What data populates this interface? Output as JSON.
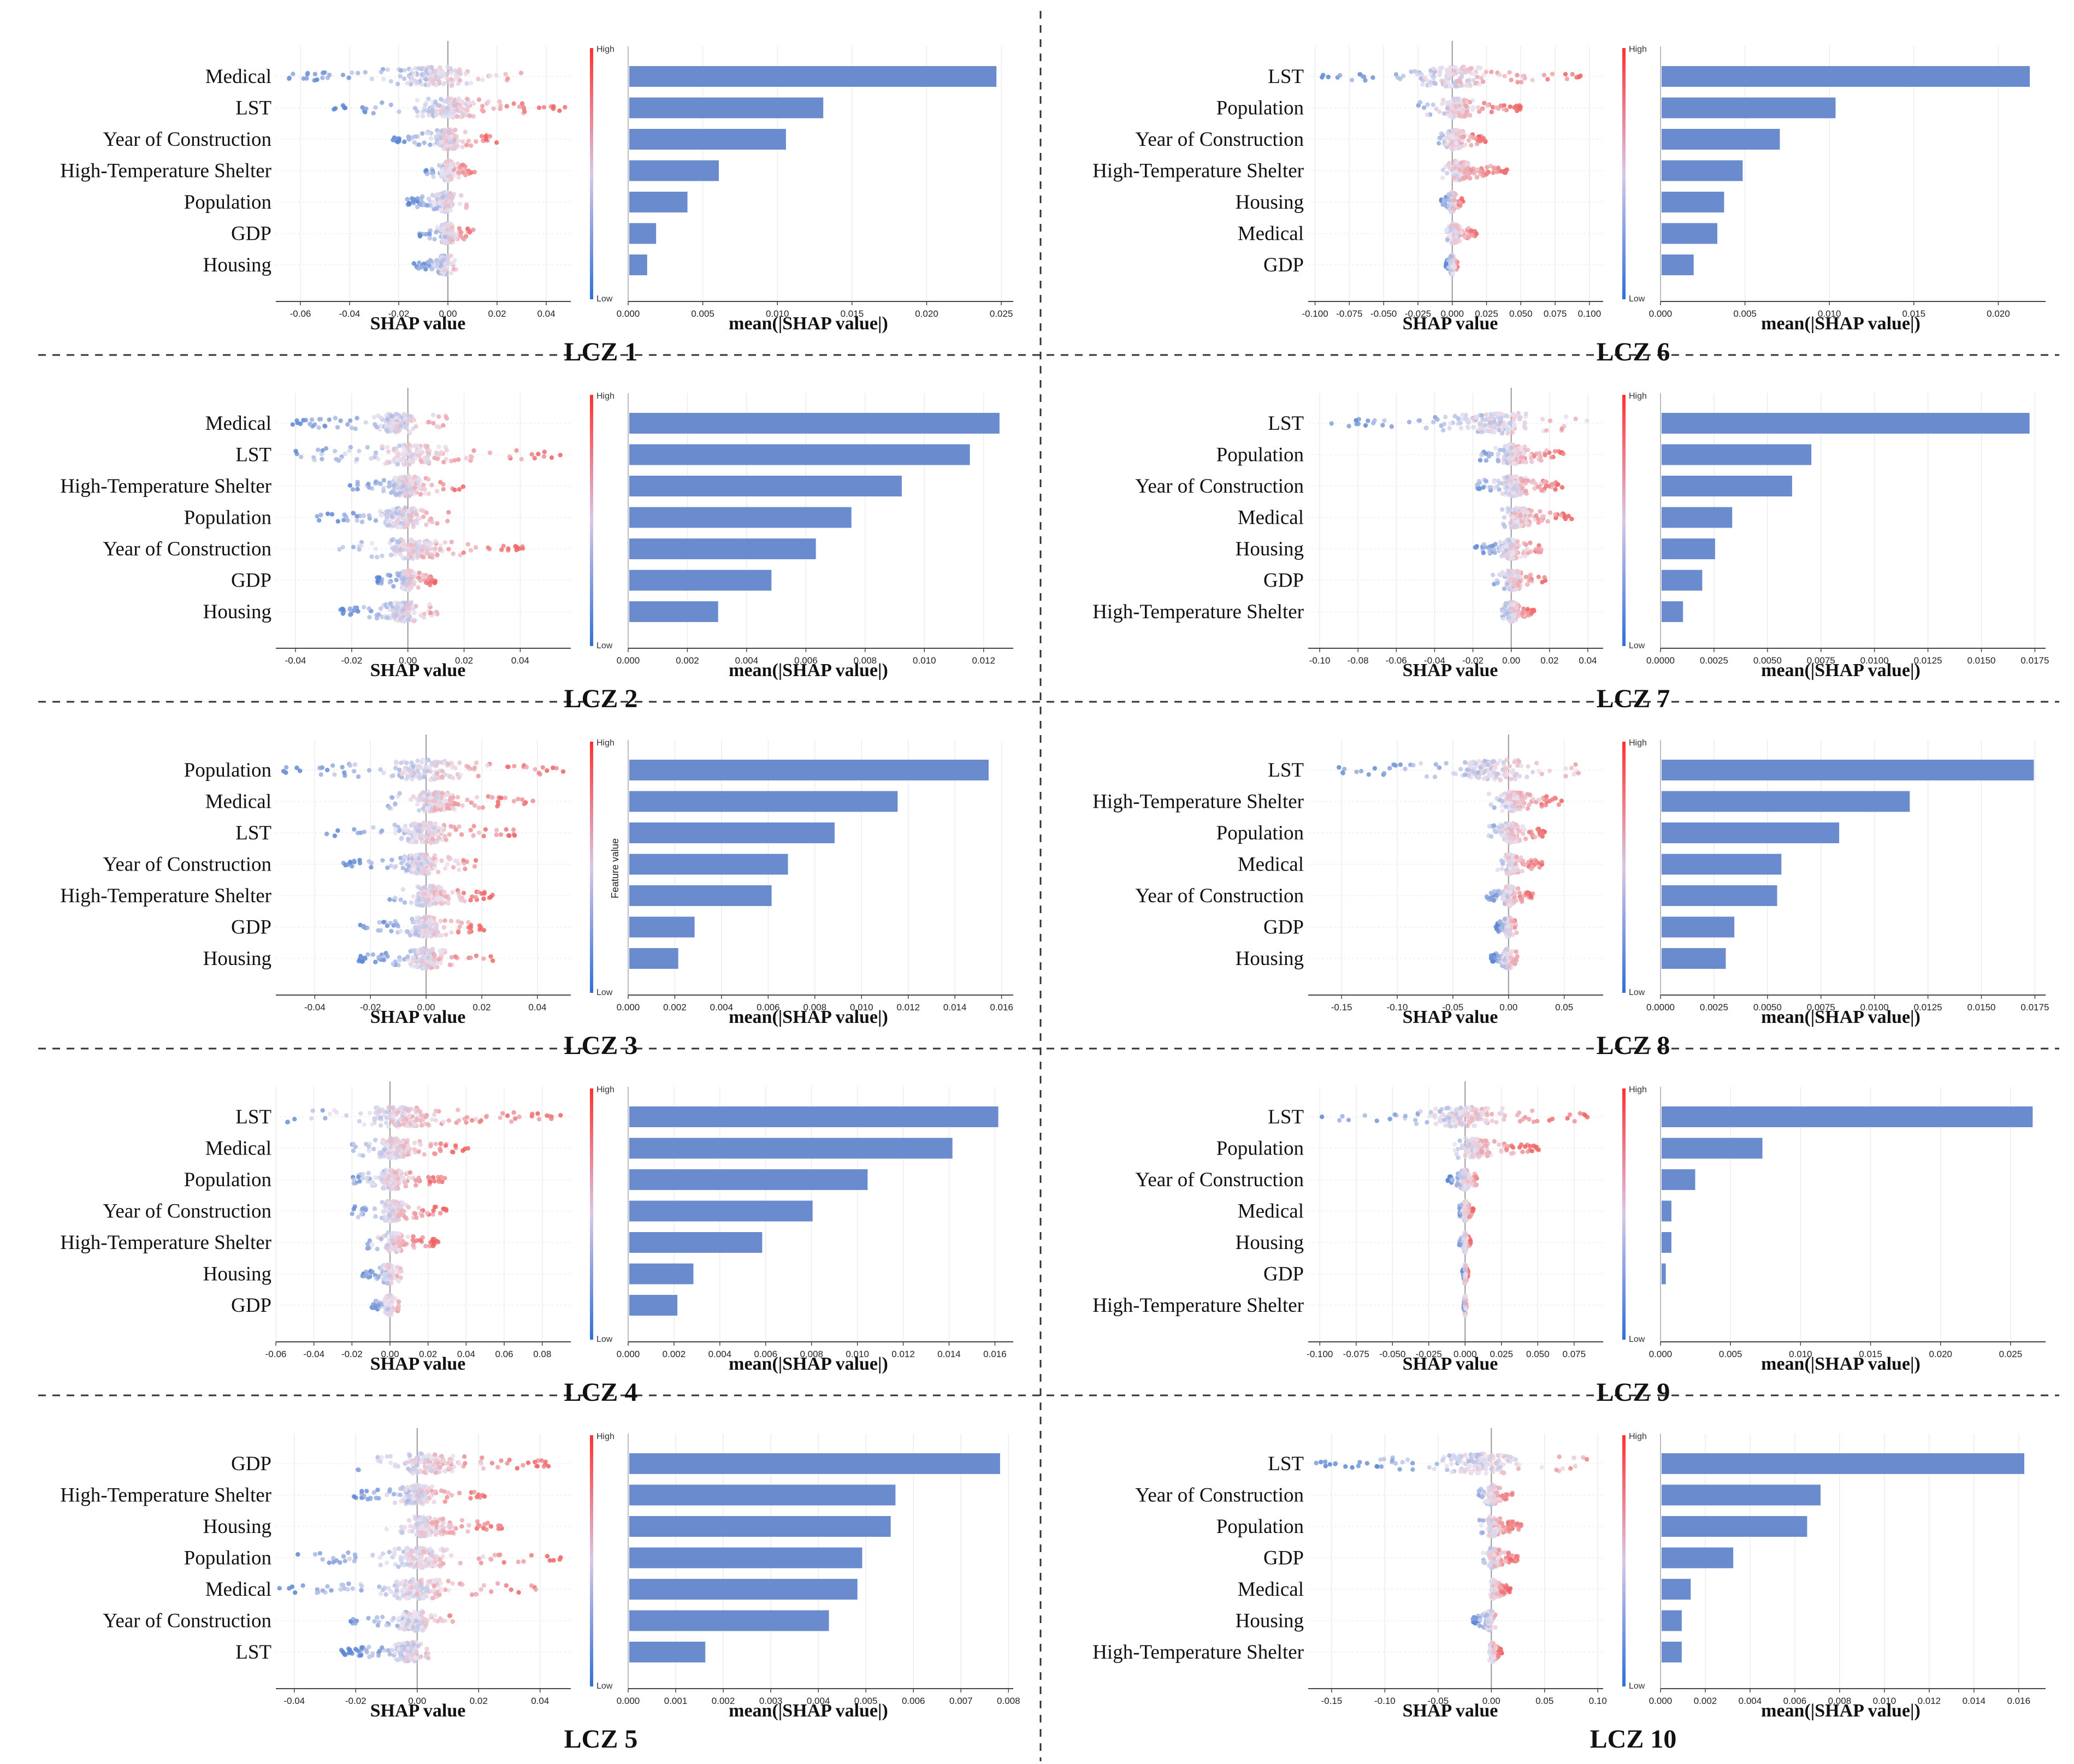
{
  "labels": {
    "shap_axis": "SHAP value",
    "bar_axis": "mean(|SHAP value|)",
    "colorbar_high": "High",
    "colorbar_low": "Low",
    "colorbar_title": "Feature value"
  },
  "colors": {
    "bar": "#6a8cce",
    "dot_high": "#f06262",
    "dot_low": "#5b86d3",
    "divider": "#333333",
    "grid": "#ececec"
  },
  "chart_data": [
    {
      "type": "bar",
      "title": "LCZ 1",
      "features": [
        "Medical",
        "LST",
        "Year of Construction",
        "High-Temperature Shelter",
        "Population",
        "GDP",
        "Housing"
      ],
      "values": [
        0.0246,
        0.013,
        0.0105,
        0.006,
        0.0039,
        0.0018,
        0.0012
      ],
      "bar_xlim": [
        0,
        0.0258
      ],
      "bar_ticks": [
        "0.000",
        "0.005",
        "0.010",
        "0.015",
        "0.020",
        "0.025"
      ],
      "shap_xlim": [
        -0.07,
        0.05
      ],
      "shap_ticks": [
        "-0.06",
        "-0.04",
        "-0.02",
        "0.00",
        "0.02",
        "0.04"
      ],
      "shap_spread": [
        [
          -0.065,
          0.03
        ],
        [
          -0.047,
          0.048
        ],
        [
          -0.023,
          0.02
        ],
        [
          -0.01,
          0.011
        ],
        [
          -0.018,
          0.008
        ],
        [
          -0.012,
          0.011
        ],
        [
          -0.014,
          0.004
        ]
      ],
      "colorbar_title_shown": false
    },
    {
      "type": "bar",
      "title": "LCZ 2",
      "features": [
        "Medical",
        "LST",
        "High-Temperature Shelter",
        "Population",
        "Year of Construction",
        "GDP",
        "Housing"
      ],
      "values": [
        0.0125,
        0.0115,
        0.0092,
        0.0075,
        0.0063,
        0.0048,
        0.003
      ],
      "bar_xlim": [
        0,
        0.013
      ],
      "bar_ticks": [
        "0.000",
        "0.002",
        "0.004",
        "0.006",
        "0.008",
        "0.010",
        "0.012"
      ],
      "shap_xlim": [
        -0.047,
        0.058
      ],
      "shap_ticks": [
        "-0.04",
        "-0.02",
        "0.00",
        "0.02",
        "0.04"
      ],
      "shap_spread": [
        [
          -0.042,
          0.014
        ],
        [
          -0.045,
          0.055
        ],
        [
          -0.022,
          0.02
        ],
        [
          -0.033,
          0.018
        ],
        [
          -0.025,
          0.042
        ],
        [
          -0.011,
          0.01
        ],
        [
          -0.024,
          0.011
        ]
      ],
      "colorbar_title_shown": false
    },
    {
      "type": "bar",
      "title": "LCZ 3",
      "features": [
        "Population",
        "Medical",
        "LST",
        "Year of Construction",
        "High-Temperature Shelter",
        "GDP",
        "Housing"
      ],
      "values": [
        0.0154,
        0.0115,
        0.0088,
        0.0068,
        0.0061,
        0.0028,
        0.0021
      ],
      "bar_xlim": [
        0,
        0.0165
      ],
      "bar_ticks": [
        "0.000",
        "0.002",
        "0.004",
        "0.006",
        "0.008",
        "0.010",
        "0.012",
        "0.014",
        "0.016"
      ],
      "shap_xlim": [
        -0.054,
        0.052
      ],
      "shap_ticks": [
        "-0.04",
        "-0.02",
        "0.00",
        "0.02",
        "0.04"
      ],
      "shap_spread": [
        [
          -0.052,
          0.05
        ],
        [
          -0.016,
          0.039
        ],
        [
          -0.036,
          0.034
        ],
        [
          -0.03,
          0.018
        ],
        [
          -0.014,
          0.024
        ],
        [
          -0.024,
          0.021
        ],
        [
          -0.025,
          0.024
        ]
      ],
      "colorbar_title_shown": true
    },
    {
      "type": "bar",
      "title": "LCZ 4",
      "features": [
        "LST",
        "Medical",
        "Population",
        "Year of Construction",
        "High-Temperature Shelter",
        "Housing",
        "GDP"
      ],
      "values": [
        0.0161,
        0.0141,
        0.0104,
        0.008,
        0.0058,
        0.0028,
        0.0021
      ],
      "bar_xlim": [
        0,
        0.0168
      ],
      "bar_ticks": [
        "0.000",
        "0.002",
        "0.004",
        "0.006",
        "0.008",
        "0.010",
        "0.012",
        "0.014",
        "0.016"
      ],
      "shap_xlim": [
        -0.06,
        0.095
      ],
      "shap_ticks": [
        "-0.06",
        "-0.04",
        "-0.02",
        "0.00",
        "0.02",
        "0.04",
        "0.06",
        "0.08"
      ],
      "shap_spread": [
        [
          -0.056,
          0.09
        ],
        [
          -0.022,
          0.042
        ],
        [
          -0.02,
          0.029
        ],
        [
          -0.02,
          0.03
        ],
        [
          -0.012,
          0.026
        ],
        [
          -0.015,
          0.006
        ],
        [
          -0.01,
          0.006
        ]
      ],
      "colorbar_title_shown": false
    },
    {
      "type": "bar",
      "title": "LCZ 5",
      "features": [
        "GDP",
        "High-Temperature Shelter",
        "Housing",
        "Population",
        "Medical",
        "Year of Construction",
        "LST"
      ],
      "values": [
        0.0078,
        0.0056,
        0.0055,
        0.0049,
        0.0048,
        0.0042,
        0.0016
      ],
      "bar_xlim": [
        0,
        0.0081
      ],
      "bar_ticks": [
        "0.000",
        "0.001",
        "0.002",
        "0.003",
        "0.004",
        "0.005",
        "0.006",
        "0.007",
        "0.008"
      ],
      "shap_xlim": [
        -0.046,
        0.05
      ],
      "shap_ticks": [
        "-0.04",
        "-0.02",
        "0.00",
        "0.02",
        "0.04"
      ],
      "shap_spread": [
        [
          -0.022,
          0.044
        ],
        [
          -0.021,
          0.022
        ],
        [
          -0.01,
          0.028
        ],
        [
          -0.04,
          0.047
        ],
        [
          -0.045,
          0.04
        ],
        [
          -0.022,
          0.014
        ],
        [
          -0.025,
          0.004
        ]
      ],
      "colorbar_title_shown": false
    },
    {
      "type": "bar",
      "title": "LCZ 6",
      "features": [
        "LST",
        "Population",
        "Year of Construction",
        "High-Temperature Shelter",
        "Housing",
        "Medical",
        "GDP"
      ],
      "values": [
        0.0218,
        0.0103,
        0.007,
        0.0048,
        0.0037,
        0.0033,
        0.0019
      ],
      "bar_xlim": [
        0,
        0.0228
      ],
      "bar_ticks": [
        "0.000",
        "0.005",
        "0.010",
        "0.015",
        "0.020"
      ],
      "shap_xlim": [
        -0.105,
        0.11
      ],
      "shap_ticks": [
        "-0.100",
        "-0.075",
        "-0.050",
        "-0.025",
        "0.000",
        "0.025",
        "0.050",
        "0.075",
        "0.100"
      ],
      "shap_spread": [
        [
          -0.095,
          0.103
        ],
        [
          -0.025,
          0.05
        ],
        [
          -0.01,
          0.025
        ],
        [
          -0.008,
          0.04
        ],
        [
          -0.008,
          0.008
        ],
        [
          -0.005,
          0.018
        ],
        [
          -0.005,
          0.004
        ]
      ],
      "colorbar_title_shown": false
    },
    {
      "type": "bar",
      "title": "LCZ 7",
      "features": [
        "LST",
        "Population",
        "Year of Construction",
        "Medical",
        "Housing",
        "GDP",
        "High-Temperature Shelter"
      ],
      "values": [
        0.0172,
        0.007,
        0.0061,
        0.0033,
        0.0025,
        0.0019,
        0.001
      ],
      "bar_xlim": [
        0,
        0.018
      ],
      "bar_ticks": [
        "0.0000",
        "0.0025",
        "0.0050",
        "0.0075",
        "0.0100",
        "0.0125",
        "0.0150",
        "0.0175"
      ],
      "shap_xlim": [
        -0.106,
        0.048
      ],
      "shap_ticks": [
        "-0.10",
        "-0.08",
        "-0.06",
        "-0.04",
        "-0.02",
        "0.00",
        "0.02",
        "0.04"
      ],
      "shap_spread": [
        [
          -0.1,
          0.043
        ],
        [
          -0.018,
          0.028
        ],
        [
          -0.02,
          0.027
        ],
        [
          -0.005,
          0.032
        ],
        [
          -0.02,
          0.016
        ],
        [
          -0.01,
          0.018
        ],
        [
          -0.006,
          0.012
        ]
      ],
      "colorbar_title_shown": false
    },
    {
      "type": "bar",
      "title": "LCZ 8",
      "features": [
        "LST",
        "High-Temperature Shelter",
        "Population",
        "Medical",
        "Year of Construction",
        "GDP",
        "Housing"
      ],
      "values": [
        0.0174,
        0.0116,
        0.0083,
        0.0056,
        0.0054,
        0.0034,
        0.003
      ],
      "bar_xlim": [
        0,
        0.018
      ],
      "bar_ticks": [
        "0.0000",
        "0.0025",
        "0.0050",
        "0.0075",
        "0.0100",
        "0.0125",
        "0.0150",
        "0.0175"
      ],
      "shap_xlim": [
        -0.18,
        0.085
      ],
      "shap_ticks": [
        "-0.15",
        "-0.10",
        "-0.05",
        "0.00",
        "0.05"
      ],
      "shap_spread": [
        [
          -0.165,
          0.07
        ],
        [
          -0.018,
          0.05
        ],
        [
          -0.018,
          0.036
        ],
        [
          -0.01,
          0.03
        ],
        [
          -0.02,
          0.022
        ],
        [
          -0.012,
          0.008
        ],
        [
          -0.016,
          0.008
        ]
      ],
      "colorbar_title_shown": false
    },
    {
      "type": "bar",
      "title": "LCZ 9",
      "features": [
        "LST",
        "Population",
        "Year of Construction",
        "Medical",
        "Housing",
        "GDP",
        "High-Temperature Shelter"
      ],
      "values": [
        0.0265,
        0.0072,
        0.0024,
        0.0007,
        0.0007,
        0.0003,
        0.0
      ],
      "bar_xlim": [
        0,
        0.0275
      ],
      "bar_ticks": [
        "0.000",
        "0.005",
        "0.010",
        "0.015",
        "0.020",
        "0.025"
      ],
      "shap_xlim": [
        -0.108,
        0.095
      ],
      "shap_ticks": [
        "-0.100",
        "-0.075",
        "-0.050",
        "-0.025",
        "0.000",
        "0.025",
        "0.050",
        "0.075"
      ],
      "shap_spread": [
        [
          -0.1,
          0.086
        ],
        [
          -0.01,
          0.052
        ],
        [
          -0.012,
          0.008
        ],
        [
          -0.004,
          0.006
        ],
        [
          -0.004,
          0.004
        ],
        [
          -0.002,
          0.002
        ],
        [
          -0.001,
          0.001
        ]
      ],
      "colorbar_title_shown": false
    },
    {
      "type": "bar",
      "title": "LCZ 10",
      "features": [
        "LST",
        "Year of Construction",
        "Population",
        "GDP",
        "Medical",
        "Housing",
        "High-Temperature Shelter"
      ],
      "values": [
        0.0162,
        0.0071,
        0.0065,
        0.0032,
        0.0013,
        0.0009,
        0.0009
      ],
      "bar_xlim": [
        0,
        0.0172
      ],
      "bar_ticks": [
        "0.000",
        "0.002",
        "0.004",
        "0.006",
        "0.008",
        "0.010",
        "0.012",
        "0.014",
        "0.016"
      ],
      "shap_xlim": [
        -0.172,
        0.105
      ],
      "shap_ticks": [
        "-0.15",
        "-0.10",
        "-0.05",
        "0.00",
        "0.05",
        "0.10"
      ],
      "shap_spread": [
        [
          -0.165,
          0.095
        ],
        [
          -0.012,
          0.02
        ],
        [
          -0.012,
          0.028
        ],
        [
          -0.008,
          0.025
        ],
        [
          -0.002,
          0.018
        ],
        [
          -0.018,
          0.004
        ],
        [
          -0.002,
          0.01
        ]
      ],
      "colorbar_title_shown": false
    }
  ]
}
